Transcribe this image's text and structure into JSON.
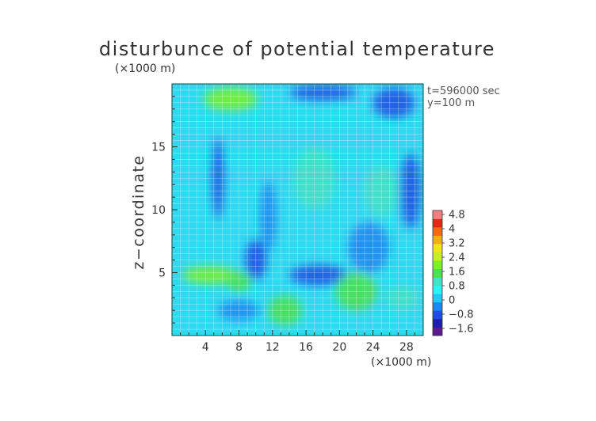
{
  "chart_data": {
    "type": "heatmap",
    "title": "disturbunce of potential temperature",
    "x_unit": "(×1000 m)",
    "y_unit": "(×1000 m)",
    "ylabel": "z−coordinate",
    "xlim": [
      0,
      30
    ],
    "ylim": [
      0,
      20
    ],
    "x_ticks": [
      "4",
      "8",
      "12",
      "16",
      "20",
      "24",
      "28"
    ],
    "y_ticks": [
      "5",
      "10",
      "15"
    ],
    "annotations": [
      "t=596000 sec",
      "y=100 m"
    ],
    "colorbar_labels": [
      "4.8",
      "4",
      "3.2",
      "2.4",
      "1.6",
      "0.8",
      "0",
      "−0.8",
      "−1.6"
    ],
    "colorbar_colors": [
      "#5a1a8c",
      "#1e1ea8",
      "#1f4ee0",
      "#1f86f0",
      "#24c8f5",
      "#2ff0f0",
      "#46e0c4",
      "#4ee04e",
      "#7ef027",
      "#c8f020",
      "#f0e614",
      "#f0b014",
      "#f06a14",
      "#e02a14",
      "#f08080"
    ],
    "grid": true,
    "features": [
      {
        "cx": 4.5,
        "cy": 4.8,
        "rx": 3.2,
        "ry": 0.7,
        "value": 1.8
      },
      {
        "cx": 8.0,
        "cy": 4.3,
        "rx": 1.5,
        "ry": 0.8,
        "value": 0.7
      },
      {
        "cx": 10.0,
        "cy": 6.0,
        "rx": 1.3,
        "ry": 1.6,
        "value": -0.8
      },
      {
        "cx": 11.5,
        "cy": 9.5,
        "rx": 1.0,
        "ry": 2.8,
        "value": -0.5
      },
      {
        "cx": 5.5,
        "cy": 12.5,
        "rx": 0.7,
        "ry": 3.2,
        "value": -0.6
      },
      {
        "cx": 7.0,
        "cy": 18.8,
        "rx": 3.2,
        "ry": 0.9,
        "value": 1.3
      },
      {
        "cx": 17.5,
        "cy": 4.8,
        "rx": 3.5,
        "ry": 0.8,
        "value": -1.0
      },
      {
        "cx": 23.5,
        "cy": 7.0,
        "rx": 2.5,
        "ry": 2.0,
        "value": -0.5
      },
      {
        "cx": 28.5,
        "cy": 11.5,
        "rx": 1.2,
        "ry": 3.0,
        "value": -0.7
      },
      {
        "cx": 18.0,
        "cy": 19.3,
        "rx": 4.0,
        "ry": 0.6,
        "value": -0.8
      },
      {
        "cx": 26.5,
        "cy": 18.5,
        "rx": 2.5,
        "ry": 1.2,
        "value": -0.7
      },
      {
        "cx": 13.5,
        "cy": 2.0,
        "rx": 2.0,
        "ry": 1.2,
        "value": 0.8
      },
      {
        "cx": 22.0,
        "cy": 3.5,
        "rx": 2.5,
        "ry": 1.5,
        "value": 0.8
      },
      {
        "cx": 27.5,
        "cy": 3.0,
        "rx": 2.0,
        "ry": 1.0,
        "value": 0.5
      },
      {
        "cx": 17.0,
        "cy": 12.5,
        "rx": 2.5,
        "ry": 2.5,
        "value": 0.4
      },
      {
        "cx": 25.0,
        "cy": 11.5,
        "rx": 2.0,
        "ry": 2.0,
        "value": 0.6
      },
      {
        "cx": 8.0,
        "cy": 2.0,
        "rx": 2.5,
        "ry": 0.8,
        "value": -0.4
      }
    ]
  }
}
